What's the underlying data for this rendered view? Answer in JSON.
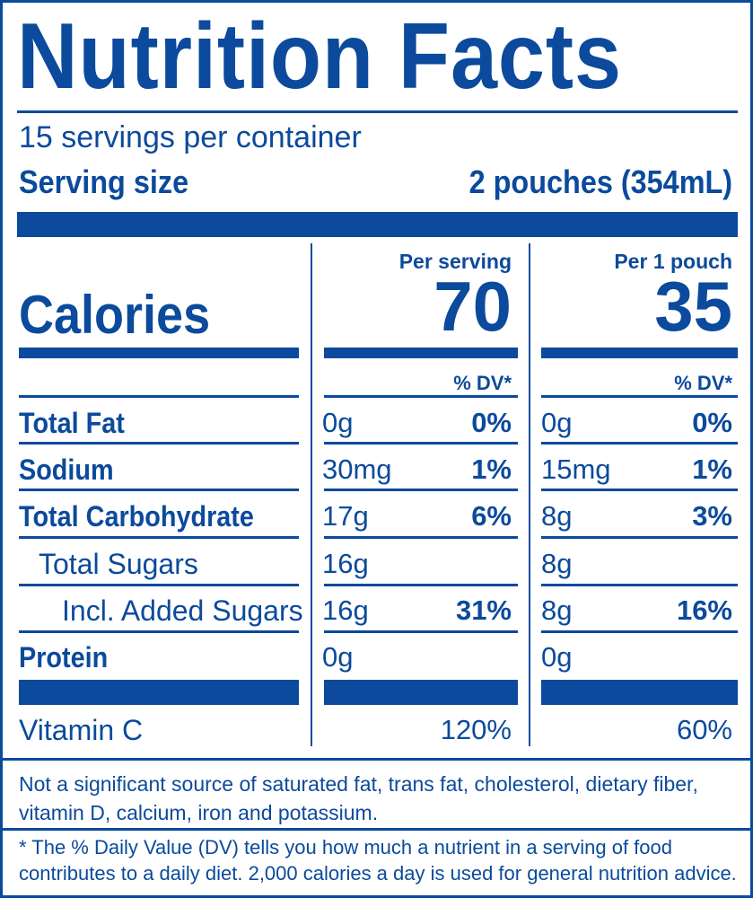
{
  "title": "Nutrition Facts",
  "servings_per_container": "15 servings per container",
  "serving_size": {
    "label": "Serving size",
    "value": "2 pouches (354mL)"
  },
  "calories": {
    "label": "Calories",
    "per_serving_header": "Per serving",
    "per_pouch_header": "Per 1 pouch",
    "per_serving_value": "70",
    "per_pouch_value": "35"
  },
  "dv_header": "% DV*",
  "nutrients": [
    {
      "name": "Total Fat",
      "bold": true,
      "serving_amount": "0g",
      "serving_dv": "0%",
      "pouch_amount": "0g",
      "pouch_dv": "0%"
    },
    {
      "name": "Sodium",
      "bold": true,
      "serving_amount": "30mg",
      "serving_dv": "1%",
      "pouch_amount": "15mg",
      "pouch_dv": "1%"
    },
    {
      "name": "Total Carbohydrate",
      "bold": true,
      "serving_amount": "17g",
      "serving_dv": "6%",
      "pouch_amount": "8g",
      "pouch_dv": "3%"
    },
    {
      "name": "Total Sugars",
      "bold": false,
      "serving_amount": "16g",
      "serving_dv": "",
      "pouch_amount": "8g",
      "pouch_dv": ""
    },
    {
      "name": "Incl. Added Sugars",
      "bold": false,
      "serving_amount": "16g",
      "serving_dv": "31%",
      "pouch_amount": "8g",
      "pouch_dv": "16%"
    },
    {
      "name": "Protein",
      "bold": true,
      "serving_amount": "0g",
      "serving_dv": "",
      "pouch_amount": "0g",
      "pouch_dv": ""
    }
  ],
  "vitamin": {
    "name": "Vitamin C",
    "serving_dv": "120%",
    "pouch_dv": "60%"
  },
  "footnote_not_significant": "Not a significant source of saturated fat, trans fat, cholesterol, dietary fiber, vitamin D, calcium, iron and potassium.",
  "footnote_dv": "* The % Daily Value (DV) tells you how much a nutrient in a serving of food contributes to a daily diet. 2,000 calories a day is used for general nutrition advice.",
  "colors": {
    "ink": "#0b4a9c",
    "background": "#ffffff"
  }
}
